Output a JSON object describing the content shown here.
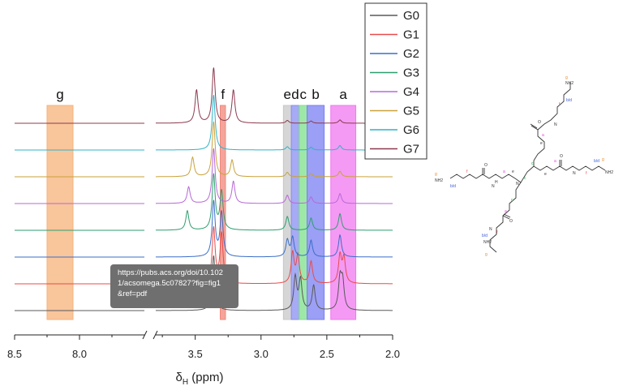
{
  "chart_data": {
    "type": "line",
    "xlabel": "δ_H (ppm)",
    "xlabel_main": "δ",
    "xlabel_sub": "H",
    "xlabel_rest": " (ppm)",
    "x_reversed": true,
    "axis_break": true,
    "xlim_left_segment": [
      8.5,
      7.5
    ],
    "xlim_right_segment": [
      3.8,
      2.0
    ],
    "x_ticks": [
      {
        "value": 8.5,
        "label": "8.5"
      },
      {
        "value": 8.0,
        "label": "8.0"
      },
      {
        "value": 3.5,
        "label": "3.5"
      },
      {
        "value": 3.0,
        "label": "3.0"
      },
      {
        "value": 2.5,
        "label": "2.5"
      },
      {
        "value": 2.0,
        "label": "2.0"
      }
    ],
    "series": [
      {
        "name": "G0",
        "color": "#595959",
        "peaks": [
          {
            "ppm": 3.36,
            "h": 1.0
          },
          {
            "ppm": 2.74,
            "h": 0.6
          },
          {
            "ppm": 2.7,
            "h": 0.55
          },
          {
            "ppm": 2.6,
            "h": 0.45
          },
          {
            "ppm": 2.4,
            "h": 0.55
          },
          {
            "ppm": 2.38,
            "h": 0.5
          }
        ]
      },
      {
        "name": "G1",
        "color": "#e84b4b",
        "peaks": [
          {
            "ppm": 3.36,
            "h": 1.0
          },
          {
            "ppm": 3.3,
            "h": 0.9
          },
          {
            "ppm": 2.76,
            "h": 0.55
          },
          {
            "ppm": 2.72,
            "h": 0.5
          },
          {
            "ppm": 2.62,
            "h": 0.4
          },
          {
            "ppm": 2.4,
            "h": 0.5
          },
          {
            "ppm": 2.37,
            "h": 0.45
          }
        ]
      },
      {
        "name": "G2",
        "color": "#3b6ec9",
        "peaks": [
          {
            "ppm": 3.36,
            "h": 1.0
          },
          {
            "ppm": 3.3,
            "h": 0.8
          },
          {
            "ppm": 2.8,
            "h": 0.3
          },
          {
            "ppm": 2.76,
            "h": 0.35
          },
          {
            "ppm": 2.62,
            "h": 0.3
          },
          {
            "ppm": 2.4,
            "h": 0.4
          }
        ]
      },
      {
        "name": "G3",
        "color": "#2e9e6f",
        "peaks": [
          {
            "ppm": 3.56,
            "h": 0.35
          },
          {
            "ppm": 3.36,
            "h": 1.0
          },
          {
            "ppm": 3.3,
            "h": 0.7
          },
          {
            "ppm": 2.8,
            "h": 0.25
          },
          {
            "ppm": 2.62,
            "h": 0.22
          },
          {
            "ppm": 2.4,
            "h": 0.3
          }
        ]
      },
      {
        "name": "G4",
        "color": "#b768d8",
        "peaks": [
          {
            "ppm": 3.55,
            "h": 0.3
          },
          {
            "ppm": 3.36,
            "h": 1.0
          },
          {
            "ppm": 3.21,
            "h": 0.4
          },
          {
            "ppm": 2.8,
            "h": 0.15
          },
          {
            "ppm": 2.62,
            "h": 0.12
          },
          {
            "ppm": 2.4,
            "h": 0.18
          }
        ]
      },
      {
        "name": "G5",
        "color": "#c9a23a",
        "peaks": [
          {
            "ppm": 3.52,
            "h": 0.35
          },
          {
            "ppm": 3.36,
            "h": 1.0
          },
          {
            "ppm": 3.22,
            "h": 0.3
          },
          {
            "ppm": 2.8,
            "h": 0.08
          },
          {
            "ppm": 2.62,
            "h": 0.06
          },
          {
            "ppm": 2.4,
            "h": 0.1
          }
        ]
      },
      {
        "name": "G6",
        "color": "#2fb3c9",
        "peaks": [
          {
            "ppm": 3.36,
            "h": 1.0
          },
          {
            "ppm": 2.8,
            "h": 0.06
          },
          {
            "ppm": 2.62,
            "h": 0.05
          },
          {
            "ppm": 2.4,
            "h": 0.08
          }
        ]
      },
      {
        "name": "G7",
        "color": "#8c3a4f",
        "peaks": [
          {
            "ppm": 3.49,
            "h": 0.6
          },
          {
            "ppm": 3.36,
            "h": 1.0
          },
          {
            "ppm": 3.21,
            "h": 0.6
          },
          {
            "ppm": 2.8,
            "h": 0.05
          },
          {
            "ppm": 2.62,
            "h": 0.04
          },
          {
            "ppm": 2.4,
            "h": 0.06
          }
        ]
      }
    ],
    "regions": [
      {
        "label": "g",
        "from": 8.25,
        "to": 8.05,
        "color": "#f7b27a"
      },
      {
        "label": "f",
        "from": 3.31,
        "to": 3.27,
        "color": "#f0877a"
      },
      {
        "label": "e",
        "from": 2.83,
        "to": 2.77,
        "color": "#c8c8c8"
      },
      {
        "label": "d",
        "from": 2.77,
        "to": 2.71,
        "color": "#8a8ef0"
      },
      {
        "label": "c",
        "from": 2.71,
        "to": 2.65,
        "color": "#7ee08a"
      },
      {
        "label": "b",
        "from": 2.65,
        "to": 2.52,
        "color": "#7a7ff2"
      },
      {
        "label": "a",
        "from": 2.47,
        "to": 2.28,
        "color": "#f078f0"
      }
    ],
    "legend_position": "top-right"
  },
  "structure_labels": {
    "amine": "NH",
    "amine_sub": "2",
    "amide": "N",
    "amide_h": "H",
    "label_bd": "b/d",
    "label_f": "f",
    "label_g": "g",
    "label_a": "a",
    "label_c": "c",
    "label_e": "e"
  },
  "tooltip": {
    "line1": "https://pubs.acs.org/doi/10.102",
    "line2": "1/acsomega.5c07827?fig=fig1",
    "line3": "&ref=pdf"
  }
}
